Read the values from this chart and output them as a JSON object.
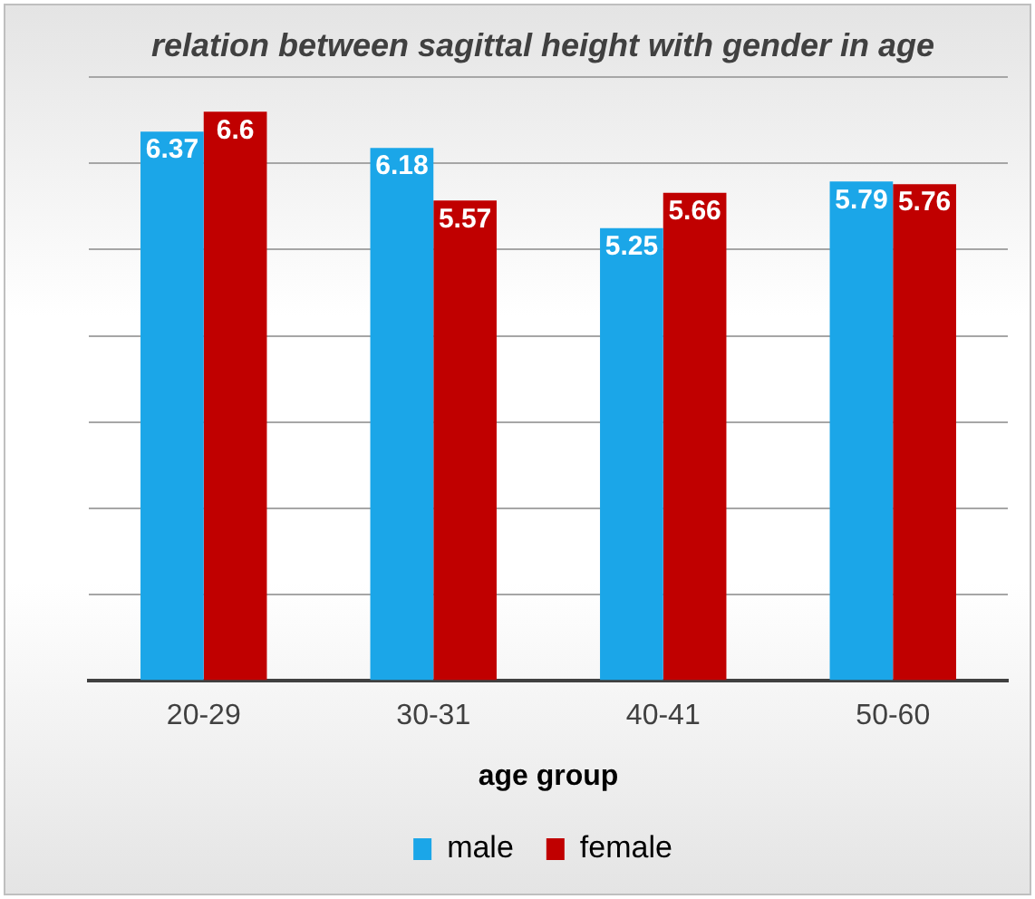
{
  "chart_data": {
    "type": "bar",
    "title": "relation between sagittal height with gender in age",
    "xlabel": "age group",
    "categories": [
      "20-29",
      "30-31",
      "40-41",
      "50-60"
    ],
    "series": [
      {
        "name": "male",
        "color": "#1ba6e8",
        "values": [
          6.37,
          6.18,
          5.25,
          5.79
        ]
      },
      {
        "name": "female",
        "color": "#c00000",
        "values": [
          6.6,
          5.57,
          5.66,
          5.76
        ]
      }
    ],
    "ylim": [
      0,
      7
    ],
    "yticks": [
      {
        "value": 0,
        "label": null
      },
      {
        "value": 1,
        "label": null
      },
      {
        "value": 2,
        "label": null
      },
      {
        "value": 3,
        "label": null
      },
      {
        "value": 4,
        "label": null
      },
      {
        "value": 5,
        "label": null
      },
      {
        "value": 6,
        "label": null
      },
      {
        "value": 7,
        "label": null
      }
    ],
    "grid": "y",
    "legend": "bottom",
    "data_labels": true
  }
}
